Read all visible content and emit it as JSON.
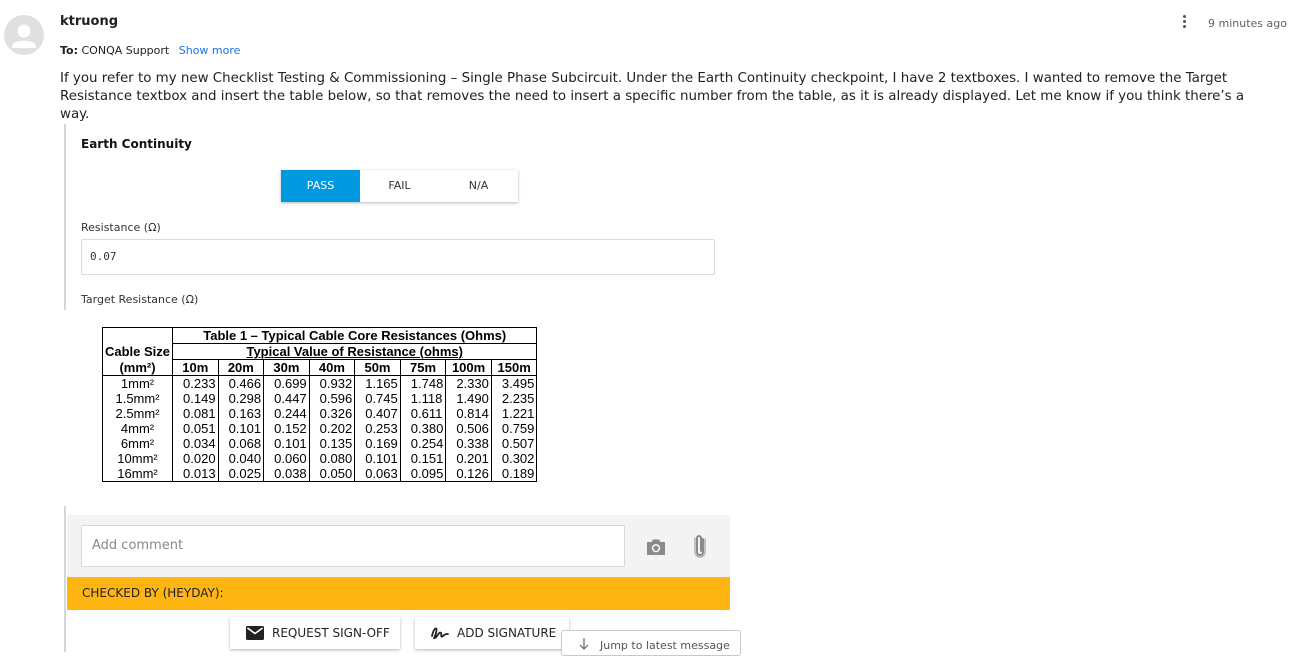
{
  "message": {
    "sender": "ktruong",
    "to_prefix": "To:",
    "to_recipient": "CONQA Support",
    "show_more": "Show more",
    "time": "9 minutes ago",
    "body": "If you refer to my new Checklist Testing & Commissioning – Single Phase Subcircuit. Under the Earth Continuity checkpoint, I have 2 textboxes. I wanted to remove the Target Resistance textbox and insert the table below, so that removes the need to insert a specific number from the table, as it is already displayed. Let me know if you think there’s a way."
  },
  "checkpoint": {
    "title": "Earth Continuity",
    "options": [
      "PASS",
      "FAIL",
      "N/A"
    ],
    "selected": "PASS",
    "resistance_label": "Resistance (Ω)",
    "resistance_value": "0.07",
    "target_label": "Target Resistance (Ω)"
  },
  "table": {
    "title": "Table 1 – Typical Cable Core Resistances (Ohms)",
    "size_header_1": "Cable Size",
    "size_header_2": "(mm²)",
    "value_header": "Typical Value of Resistance (ohms)",
    "lengths": [
      "10m",
      "20m",
      "30m",
      "40m",
      "50m",
      "75m",
      "100m",
      "150m"
    ],
    "rows": [
      {
        "size": "1mm²",
        "values": [
          "0.233",
          "0.466",
          "0.699",
          "0.932",
          "1.165",
          "1.748",
          "2.330",
          "3.495"
        ]
      },
      {
        "size": "1.5mm²",
        "values": [
          "0.149",
          "0.298",
          "0.447",
          "0.596",
          "0.745",
          "1.118",
          "1.490",
          "2.235"
        ]
      },
      {
        "size": "2.5mm²",
        "values": [
          "0.081",
          "0.163",
          "0.244",
          "0.326",
          "0.407",
          "0.611",
          "0.814",
          "1.221"
        ]
      },
      {
        "size": "4mm²",
        "values": [
          "0.051",
          "0.101",
          "0.152",
          "0.202",
          "0.253",
          "0.380",
          "0.506",
          "0.759"
        ]
      },
      {
        "size": "6mm²",
        "values": [
          "0.034",
          "0.068",
          "0.101",
          "0.135",
          "0.169",
          "0.254",
          "0.338",
          "0.507"
        ]
      },
      {
        "size": "10mm²",
        "values": [
          "0.020",
          "0.040",
          "0.060",
          "0.080",
          "0.101",
          "0.151",
          "0.201",
          "0.302"
        ]
      },
      {
        "size": "16mm²",
        "values": [
          "0.013",
          "0.025",
          "0.038",
          "0.050",
          "0.063",
          "0.095",
          "0.126",
          "0.189"
        ]
      }
    ]
  },
  "comment": {
    "placeholder": "Add comment",
    "camera_icon": "camera-icon",
    "attach_icon": "paperclip-icon"
  },
  "signoff": {
    "checked_by": "CHECKED BY (HEYDAY):",
    "request_label": "REQUEST SIGN-OFF",
    "signature_label": "ADD SIGNATURE",
    "jump_label": "Jump to latest message"
  },
  "colors": {
    "accent": "#0099e0",
    "link": "#1a73e8",
    "banner": "#ffb612"
  }
}
